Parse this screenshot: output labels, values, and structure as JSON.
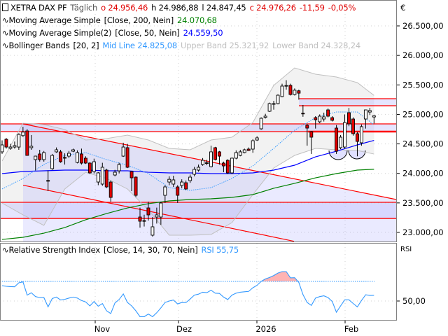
{
  "header": {
    "instrument": "XETRA DAX PF",
    "interval": "Täglich",
    "open": "o 24.956,46",
    "high": "h 24.986,88",
    "low": "l 24.847,45",
    "close": "c 24.976,26",
    "change": "-11,59",
    "change_pct": "-0,05%",
    "currency": "€"
  },
  "indicators": {
    "sma200": {
      "label": "Moving Average Simple",
      "params": "[Close, 200, Nein]",
      "value": "24.070,68",
      "color": "#008000"
    },
    "sma50": {
      "label": "Moving Average Simple(2)",
      "params": "[Close, 50, Nein]",
      "value": "24.559,50",
      "color": "#0000ff"
    },
    "bollinger": {
      "label": "Bollinger Bands",
      "params": "[20, 2]",
      "mid": "Mid Line 24.825,08",
      "upper": "Upper Band 25.321,92",
      "lower": "Lower Band 24.328,24",
      "mid_color": "#3399ff",
      "band_color": "#c0c0c0"
    },
    "rsi": {
      "label": "Relative Strength Index",
      "params": "[Close, 14, 30, 70, Nein]",
      "value": "RSI 55,75",
      "axis_label": "RSI",
      "color": "#3399ff"
    }
  },
  "chart_data": [
    {
      "type": "candlestick",
      "ylim": [
        22850,
        26750
      ],
      "y_ticks": [
        26500,
        26000,
        25500,
        25000,
        24500,
        24000,
        23500,
        23000
      ],
      "y_tick_labels": [
        "26.500,00",
        "26.000,00",
        "25.500,00",
        "25.000,00",
        "24.500,00",
        "24.000,00",
        "23.500,00",
        "23.000,00"
      ],
      "x_tick_labels": [
        "Nov",
        "Dez",
        "2026",
        "Feb"
      ],
      "grid": true,
      "colors": {
        "up": "#ffffff",
        "down": "#e00000"
      },
      "ohlc": [
        [
          24365,
          24560,
          24330,
          24483
        ],
        [
          24578,
          24600,
          24420,
          24447
        ],
        [
          24424,
          24500,
          24400,
          24447
        ],
        [
          24447,
          24540,
          24420,
          24471
        ],
        [
          24447,
          24680,
          24400,
          24661
        ],
        [
          24640,
          24790,
          24620,
          24700
        ],
        [
          24720,
          24750,
          24300,
          24305
        ],
        [
          24436,
          24650,
          24400,
          24460
        ],
        [
          24234,
          24300,
          24050,
          24293
        ],
        [
          24329,
          24400,
          24200,
          24234
        ],
        [
          24234,
          24380,
          24200,
          24353
        ],
        [
          23880,
          24050,
          23700,
          23870
        ],
        [
          24080,
          24330,
          24060,
          24305
        ],
        [
          24365,
          24440,
          24350,
          24400
        ],
        [
          24365,
          24400,
          24180,
          24198
        ],
        [
          24270,
          24340,
          24150,
          24265
        ],
        [
          24293,
          24380,
          24260,
          24341
        ],
        [
          24376,
          24420,
          24360,
          24400
        ],
        [
          24186,
          24390,
          24170,
          24353
        ],
        [
          24329,
          24420,
          24150,
          24175
        ],
        [
          24258,
          24290,
          24160,
          24175
        ],
        [
          24175,
          24190,
          23990,
          24009
        ],
        [
          24032,
          24250,
          24000,
          24198
        ],
        [
          23854,
          24020,
          23800,
          24009
        ],
        [
          23819,
          24180,
          23790,
          24104
        ],
        [
          24056,
          24080,
          23750,
          23771
        ],
        [
          23854,
          23880,
          23520,
          23593
        ],
        [
          23973,
          24060,
          23950,
          24020
        ],
        [
          24044,
          24180,
          24000,
          24151
        ],
        [
          24293,
          24520,
          24280,
          24447
        ],
        [
          24436,
          24500,
          24090,
          24104
        ],
        [
          24032,
          24040,
          23700,
          23925
        ],
        [
          23937,
          23950,
          23600,
          23629
        ],
        [
          23261,
          23420,
          23080,
          23190
        ],
        [
          23200,
          23300,
          23100,
          23190
        ],
        [
          23415,
          23520,
          23200,
          23297
        ],
        [
          22953,
          23260,
          22930,
          23095
        ],
        [
          23261,
          23420,
          23150,
          23297
        ],
        [
          23261,
          23520,
          23130,
          23498
        ],
        [
          23629,
          23800,
          23500,
          23771
        ],
        [
          23854,
          23950,
          23800,
          23900
        ],
        [
          23819,
          23960,
          23770,
          23890
        ],
        [
          23771,
          23800,
          23500,
          23629
        ],
        [
          23795,
          23900,
          23750,
          23854
        ],
        [
          23842,
          23880,
          23720,
          23736
        ],
        [
          23878,
          23980,
          23840,
          23937
        ],
        [
          23985,
          24110,
          23950,
          24068
        ],
        [
          24056,
          24150,
          24030,
          24104
        ],
        [
          24151,
          24260,
          24130,
          24222
        ],
        [
          24180,
          24230,
          24140,
          24175
        ],
        [
          24115,
          24470,
          24100,
          24365
        ],
        [
          24436,
          24450,
          24220,
          24234
        ],
        [
          24365,
          24380,
          24150,
          24293
        ],
        [
          24175,
          24200,
          24020,
          24127
        ],
        [
          24222,
          24240,
          23990,
          24009
        ],
        [
          24009,
          24270,
          23990,
          24258
        ],
        [
          24258,
          24390,
          24240,
          24353
        ],
        [
          24305,
          24400,
          24290,
          24365
        ],
        [
          24353,
          24420,
          24340,
          24400
        ],
        [
          24412,
          24440,
          24380,
          24388
        ],
        [
          24412,
          24580,
          24350,
          24554
        ],
        [
          24566,
          24630,
          24550,
          24602
        ],
        [
          24756,
          24950,
          24740,
          24934
        ],
        [
          24950,
          25010,
          24930,
          24970
        ],
        [
          25053,
          25200,
          25040,
          25183
        ],
        [
          25180,
          25230,
          25080,
          25183
        ],
        [
          25183,
          25340,
          25170,
          25325
        ],
        [
          25302,
          25520,
          25290,
          25480
        ],
        [
          25480,
          25580,
          25420,
          25490
        ],
        [
          25492,
          25520,
          25320,
          25337
        ],
        [
          25337,
          25440,
          25320,
          25410
        ],
        [
          25400,
          25420,
          25250,
          25360
        ],
        [
          25020,
          25160,
          24960,
          25017
        ],
        [
          24815,
          24840,
          24470,
          24768
        ],
        [
          24709,
          24720,
          24330,
          24614
        ],
        [
          24945,
          24970,
          24760,
          24910
        ],
        [
          24875,
          25000,
          24850,
          24970
        ],
        [
          24922,
          25030,
          24880,
          24958
        ],
        [
          25076,
          25100,
          24950,
          24970
        ],
        [
          24945,
          24970,
          24880,
          24900
        ],
        [
          24768,
          24820,
          24330,
          24376
        ],
        [
          24436,
          24650,
          24410,
          24614
        ],
        [
          24447,
          25000,
          24420,
          24863
        ],
        [
          25029,
          25110,
          24800,
          24839
        ],
        [
          24922,
          24950,
          24640,
          24673
        ],
        [
          24673,
          24700,
          24290,
          24542
        ],
        [
          24519,
          24830,
          24470,
          24792
        ],
        [
          24922,
          25080,
          24760,
          25076
        ],
        [
          25040,
          25110,
          24990,
          25065
        ],
        [
          24956.46,
          24986.88,
          24847.45,
          24976.26
        ]
      ],
      "overlays": {
        "sma200": [
          22881,
          22917,
          22988,
          23083,
          23214,
          23320,
          23415,
          23487,
          23534,
          23558,
          23570,
          23593,
          23641,
          23748,
          23831,
          23925,
          23997,
          24056,
          24070.68
        ],
        "sma50": [
          23997,
          24032,
          24044,
          24056,
          24056,
          24044,
          24044,
          24020,
          24009,
          24009,
          23997,
          23997,
          24009,
          24056,
          24139,
          24281,
          24376,
          24483,
          24559.5
        ],
        "bb_mid": [
          23736,
          23914,
          24151,
          24305,
          24353,
          24234,
          24139,
          23997,
          23759,
          23712,
          23759,
          23914,
          24127,
          24424,
          24732,
          24946,
          25041,
          25041,
          24825.08
        ],
        "bb_upper": [
          24210,
          24851,
          24827,
          24744,
          24566,
          24590,
          24649,
          24566,
          24424,
          24400,
          24566,
          24614,
          24863,
          25492,
          25788,
          25681,
          25634,
          25539,
          25321.92
        ],
        "bb_lower": [
          23498,
          23297,
          23119,
          23736,
          24020,
          23914,
          23736,
          23380,
          22953,
          22953,
          22965,
          23166,
          23641,
          24092,
          24305,
          24424,
          24400,
          24388,
          24328.24
        ]
      },
      "drawings": {
        "zones": [
          [
            24709,
            24839
          ],
          [
            25147,
            25266
          ],
          [
            23237,
            23510
          ]
        ],
        "channel_upper": [
          24839,
          23558
        ],
        "channel_lower": [
          23800,
          22850
        ]
      }
    },
    {
      "type": "line",
      "name": "RSI",
      "y_ticks": [
        50
      ],
      "y_tick_labels": [
        "50,00"
      ],
      "levels": [
        70
      ],
      "overbought_fill": "#ffb3b3",
      "values": [
        65.6,
        65,
        64.7,
        64.5,
        68.6,
        69.5,
        56,
        58.4,
        54.5,
        53.5,
        53.5,
        44,
        52.5,
        54,
        51,
        51.7,
        53,
        54,
        53,
        50.5,
        49,
        45,
        49.5,
        44.7,
        47.4,
        40,
        37.2,
        48,
        51.5,
        57.2,
        48.5,
        45,
        40,
        34,
        34,
        36.7,
        34,
        38,
        43,
        48.5,
        50,
        51,
        47,
        48.5,
        48.4,
        52,
        56,
        57,
        59,
        58.5,
        61,
        58,
        57.7,
        54,
        51.5,
        56,
        58,
        59,
        59.4,
        59.8,
        63.5,
        66,
        70,
        72.5,
        74,
        76,
        78.5,
        80,
        80,
        73.6,
        73.8,
        69,
        56.5,
        48.5,
        45.5,
        53,
        54.5,
        55.3,
        53.5,
        49.5,
        38.5,
        45,
        51.2,
        51.2,
        47.5,
        44,
        50.5,
        56.4,
        55.7,
        55.75
      ]
    }
  ]
}
